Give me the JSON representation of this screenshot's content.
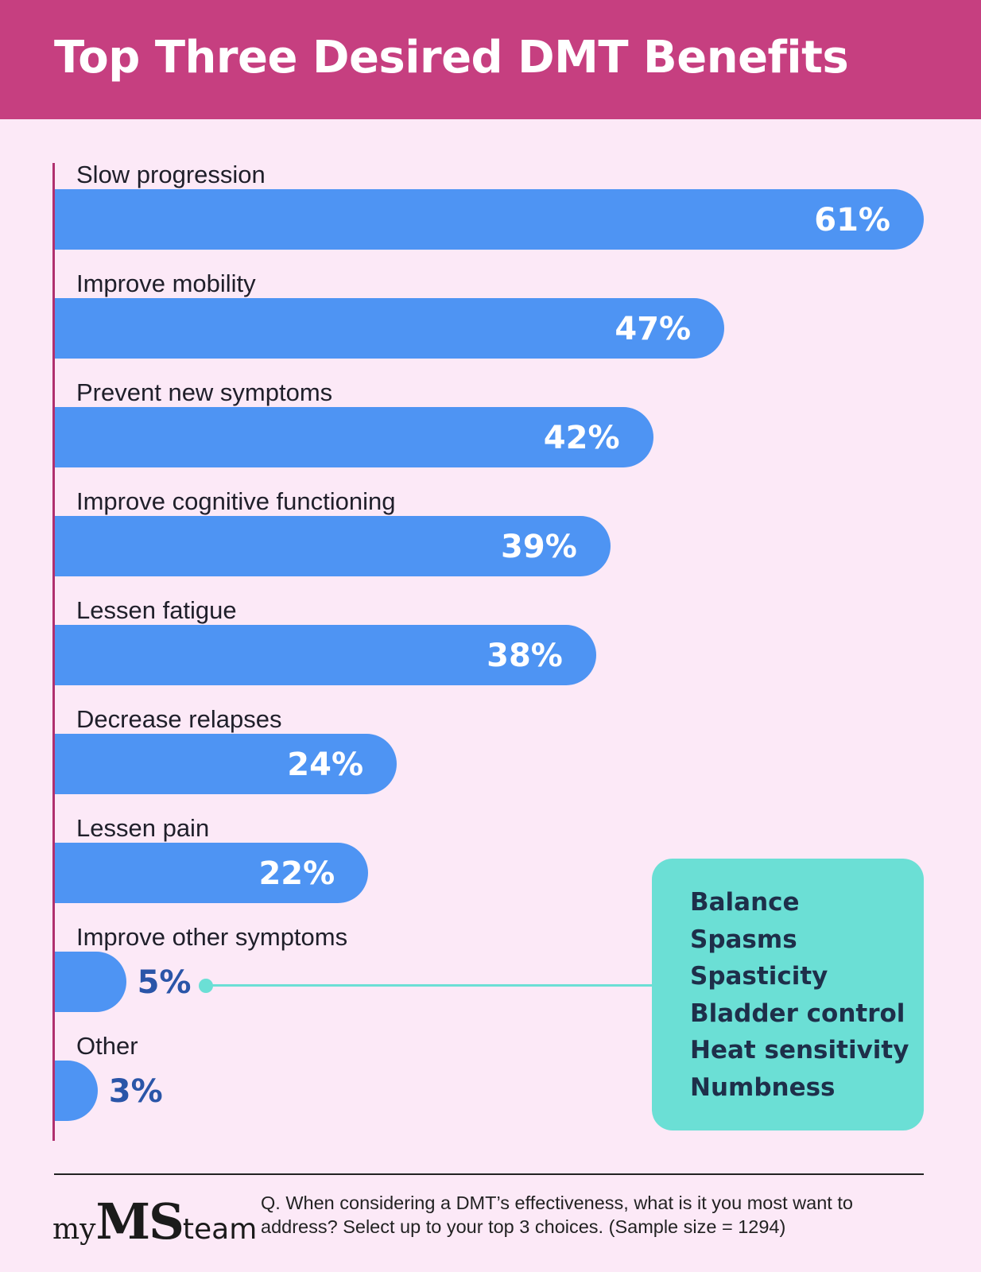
{
  "header": {
    "title": "Top Three Desired DMT Benefits"
  },
  "colors": {
    "header": "#c63f80",
    "background": "#fce9f7",
    "bar": "#4e94f3",
    "callout": "#6bdfd5",
    "outside_value": "#2a55a8"
  },
  "chart_data": {
    "type": "bar",
    "orientation": "horizontal",
    "title": "Top Three Desired DMT Benefits",
    "categories": [
      "Slow progression",
      "Improve mobility",
      "Prevent new symptoms",
      "Improve cognitive functioning",
      "Lessen fatigue",
      "Decrease relapses",
      "Lessen pain",
      "Improve other symptoms",
      "Other"
    ],
    "values": [
      61,
      47,
      42,
      39,
      38,
      24,
      22,
      5,
      3
    ],
    "value_labels": [
      "61%",
      "47%",
      "42%",
      "39%",
      "38%",
      "24%",
      "22%",
      "5%",
      "3%"
    ],
    "unit": "%",
    "xlim": [
      0,
      61
    ],
    "grid": false,
    "legend": "none"
  },
  "callout": {
    "target": "Improve other symptoms",
    "items": [
      "Balance",
      "Spasms",
      "Spasticity",
      "Bladder control",
      "Heat sensitivity",
      "Numbness"
    ]
  },
  "footer": {
    "logo": {
      "my": "my",
      "ms": "MS",
      "team": "team"
    },
    "question": "Q. When considering a DMT’s effectiveness, what is it you most want to address? Select up to your top 3 choices. (Sample size = 1294)"
  }
}
